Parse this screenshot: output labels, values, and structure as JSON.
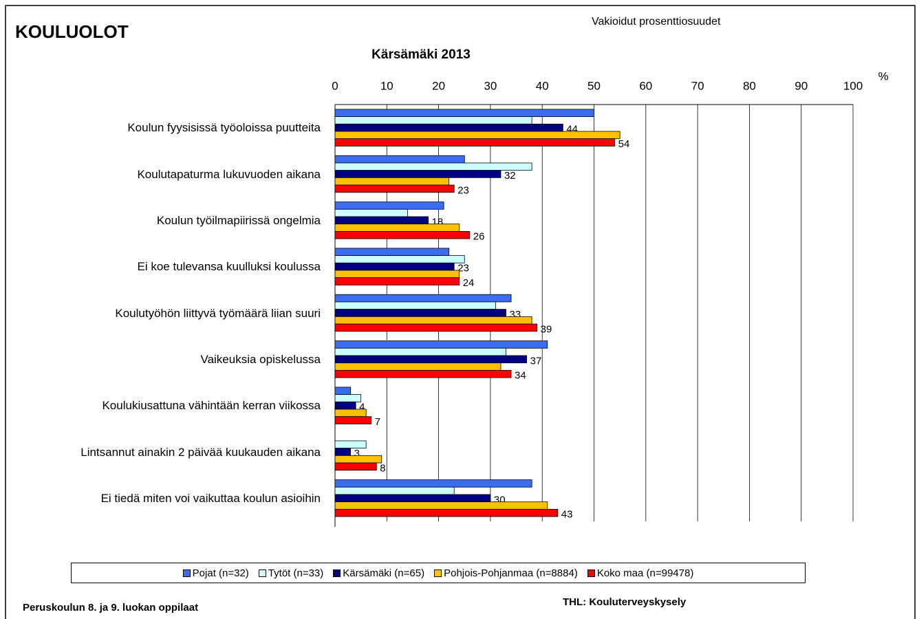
{
  "chart_data": {
    "type": "bar",
    "orientation": "horizontal",
    "heading": "KOULUOLOT",
    "subtitle": "Vakioidut prosenttiosuudet",
    "title": "Kärsämäki 2013",
    "unit_label": "%",
    "categories": [
      "Koulun fyysisissä työoloissa puutteita",
      "Koulutapaturma lukuvuoden aikana",
      "Koulun työilmapiirissä ongelmia",
      "Ei koe tulevansa kuulluksi koulussa",
      "Koulutyöhön liittyvä työmäärä liian suuri",
      "Vaikeuksia opiskelussa",
      "Koulukiusattuna vähintään kerran viikossa",
      "Lintsannut ainakin 2 päivää kuukauden aikana",
      "Ei tiedä miten voi vaikuttaa koulun asioihin"
    ],
    "series": [
      {
        "name": "Pojat (n=32)",
        "color": "#3c6cf0",
        "show_labels": false,
        "values": [
          50,
          25,
          21,
          22,
          34,
          41,
          3,
          null,
          38
        ]
      },
      {
        "name": "Tytöt (n=33)",
        "color": "#ccffff",
        "show_labels": false,
        "values": [
          38,
          38,
          14,
          25,
          31,
          33,
          5,
          6,
          23
        ]
      },
      {
        "name": "Kärsämäki (n=65)",
        "color": "#000080",
        "show_labels": true,
        "values": [
          44,
          32,
          18,
          23,
          33,
          37,
          4,
          3,
          30
        ]
      },
      {
        "name": "Pohjois-Pohjanmaa (n=8884)",
        "color": "#ffc000",
        "show_labels": false,
        "values": [
          55,
          22,
          24,
          24,
          38,
          32,
          6,
          9,
          41
        ]
      },
      {
        "name": "Koko maa (n=99478)",
        "color": "#ff0000",
        "show_labels": true,
        "values": [
          54,
          23,
          26,
          24,
          39,
          34,
          7,
          8,
          43
        ]
      }
    ],
    "xlim": [
      0,
      100
    ],
    "xticks": [
      0,
      10,
      20,
      30,
      40,
      50,
      60,
      70,
      80,
      90,
      100
    ],
    "grid": true,
    "legend": "bottom",
    "footer_left": "Peruskoulun 8. ja 9. luokan oppilaat",
    "footer_right": "THL: Kouluterveyskysely"
  }
}
